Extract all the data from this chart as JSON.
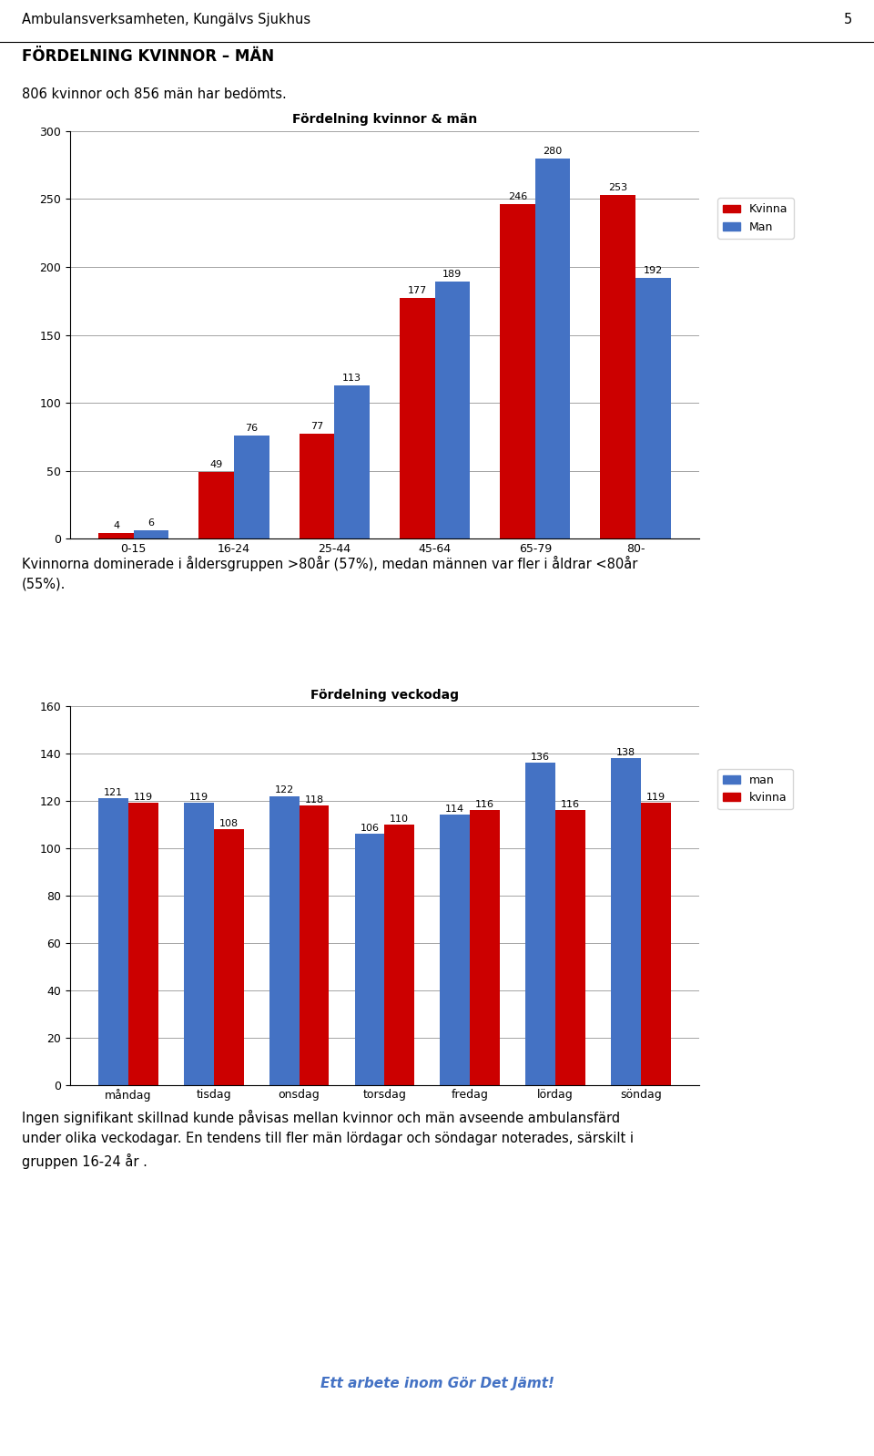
{
  "page_header": "Ambulansverksamheten, Kungälvs Sjukhus",
  "page_number": "5",
  "section_title": "FÖRDELNING KVINNOR – MÄN",
  "section_subtitle": "806 kvinnor och 856 män har bedömts.",
  "chart1_title": "Fördelning kvinnor & män",
  "chart1_categories": [
    "0-15",
    "16-24",
    "25-44",
    "45-64",
    "65-79",
    "80-"
  ],
  "chart1_kvinna": [
    4,
    49,
    77,
    177,
    246,
    253
  ],
  "chart1_man": [
    6,
    76,
    113,
    189,
    280,
    192
  ],
  "chart1_color_kvinna": "#cc0000",
  "chart1_color_man": "#4472c4",
  "chart1_ylim": [
    0,
    300
  ],
  "chart1_yticks": [
    0,
    50,
    100,
    150,
    200,
    250,
    300
  ],
  "chart1_legend": [
    "Kvinna",
    "Man"
  ],
  "chart1_text": "Kvinnorna dominerade i åldersgruppen >80år (57%), medan männen var fler i åldrar <80år\n(55%).",
  "chart2_title": "Fördelning veckodag",
  "chart2_categories": [
    "måndag",
    "tisdag",
    "onsdag",
    "torsdag",
    "fredag",
    "lördag",
    "söndag"
  ],
  "chart2_man": [
    121,
    119,
    122,
    106,
    114,
    136,
    138
  ],
  "chart2_kvinna": [
    119,
    108,
    118,
    110,
    116,
    116,
    119
  ],
  "chart2_color_man": "#4472c4",
  "chart2_color_kvinna": "#cc0000",
  "chart2_ylim": [
    0,
    160
  ],
  "chart2_yticks": [
    0,
    20,
    40,
    60,
    80,
    100,
    120,
    140,
    160
  ],
  "chart2_legend": [
    "man",
    "kvinna"
  ],
  "chart2_text": "Ingen signifikant skillnad kunde påvisas mellan kvinnor och män avseende ambulansfärd\nunder olika veckodagar. En tendens till fler män lördagar och söndagar noterades, särskilt i\ngruppen 16-24 år .",
  "footer": "Ett arbete inom Gör Det Jämt!",
  "footer_color": "#4472c4",
  "bg_color": "#ffffff"
}
